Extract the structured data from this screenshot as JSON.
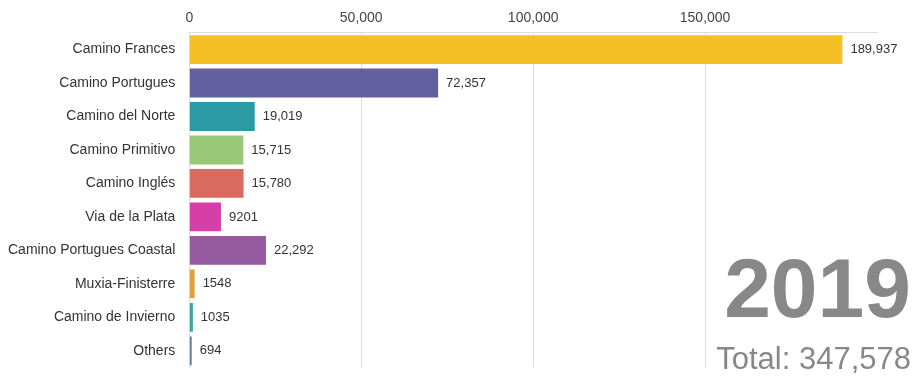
{
  "chart_data": {
    "type": "bar",
    "orientation": "horizontal",
    "categories": [
      "Camino Frances",
      "Camino Portugues",
      "Camino del Norte",
      "Camino Primitivo",
      "Camino Inglés",
      "Via de la Plata",
      "Camino Portugues Coastal",
      "Muxia-Finisterre",
      "Camino de Invierno",
      "Others"
    ],
    "values": [
      189937,
      72357,
      19019,
      15715,
      15780,
      9201,
      22292,
      1548,
      1035,
      694
    ],
    "value_labels": [
      "189,937",
      "72,357",
      "19,019",
      "15,715",
      "15,780",
      "9201",
      "22,292",
      "1548",
      "1035",
      "694"
    ],
    "colors": [
      "#f4c025",
      "#63609f",
      "#2a9aa5",
      "#98c878",
      "#d96a5e",
      "#d63fa8",
      "#955aa0",
      "#e0a040",
      "#3aa8a0",
      "#5a7fa0"
    ],
    "xlim": [
      0,
      200000
    ],
    "xticks": [
      0,
      {
        "value": 50000,
        "label": "50,000"
      },
      {
        "value": 100000,
        "label": "100,000"
      },
      {
        "value": 150000,
        "label": "150,000"
      }
    ],
    "grid": true,
    "data_labels": true,
    "annotations": [
      {
        "text": "2019"
      },
      {
        "text": "Total: 347,578"
      }
    ]
  }
}
